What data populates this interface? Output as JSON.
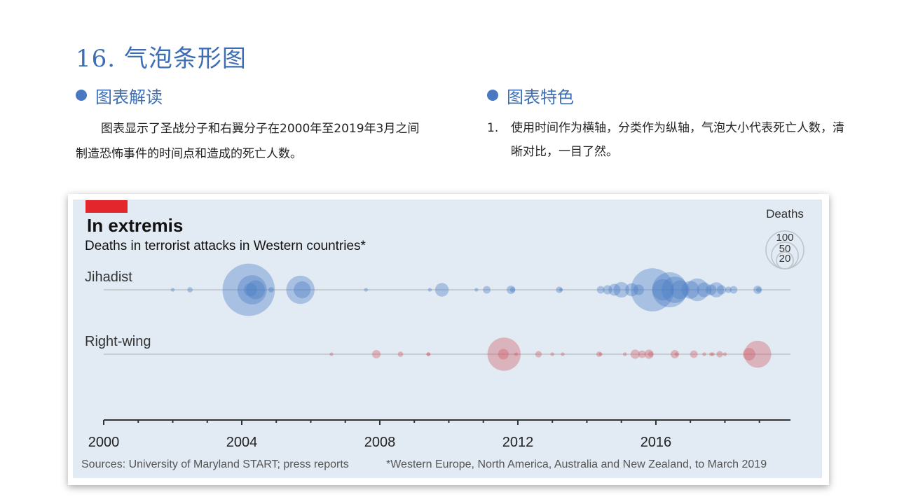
{
  "slide": {
    "title": "16. 气泡条形图",
    "left_heading": "图表解读",
    "left_text": "图表显示了圣战分子和右翼分子在2000年至2019年3月之间制造恐怖事件的时间点和造成的死亡人数。",
    "right_heading": "图表特色",
    "right_item_num": "1.",
    "right_item_text": "使用时间作为横轴，分类作为纵轴，气泡大小代表死亡人数，清晰对比，一目了然。"
  },
  "colors": {
    "title_blue": "#3d6eb5",
    "jihadist_bubble": "#4a7cc4",
    "rightwing_bubble": "#d05a63",
    "tag_red": "#e3262b"
  },
  "chart_data": {
    "type": "scatter",
    "title": "In extremis",
    "subtitle": "Deaths in terrorist attacks in Western countries*",
    "source": "Sources: University of Maryland START; press reports",
    "footnote": "*Western Europe, North America, Australia and New Zealand, to March 2019",
    "xlim": [
      2000,
      2019.9
    ],
    "x_ticks": [
      2000,
      2004,
      2008,
      2012,
      2016
    ],
    "x_tick_labels": [
      "2000",
      "2004",
      "2008",
      "2012",
      "2016"
    ],
    "legend": {
      "title": "Deaths",
      "sizes": [
        100,
        50,
        20
      ],
      "labels": [
        "100",
        "50",
        "20"
      ],
      "placement": "top-right"
    },
    "series": [
      {
        "name": "Jihadist",
        "label": "Jihadist",
        "color": "#4a7cc4",
        "points": [
          {
            "x": 2002.0,
            "deaths": 1
          },
          {
            "x": 2002.5,
            "deaths": 2
          },
          {
            "x": 2004.2,
            "deaths": 191
          },
          {
            "x": 2004.3,
            "deaths": 60
          },
          {
            "x": 2004.4,
            "deaths": 25
          },
          {
            "x": 2004.25,
            "deaths": 12
          },
          {
            "x": 2004.85,
            "deaths": 2
          },
          {
            "x": 2005.7,
            "deaths": 56
          },
          {
            "x": 2005.75,
            "deaths": 20
          },
          {
            "x": 2007.6,
            "deaths": 1
          },
          {
            "x": 2009.45,
            "deaths": 1
          },
          {
            "x": 2009.8,
            "deaths": 13
          },
          {
            "x": 2010.8,
            "deaths": 1
          },
          {
            "x": 2011.1,
            "deaths": 4
          },
          {
            "x": 2011.8,
            "deaths": 5
          },
          {
            "x": 2011.85,
            "deaths": 2
          },
          {
            "x": 2013.2,
            "deaths": 3
          },
          {
            "x": 2013.25,
            "deaths": 1
          },
          {
            "x": 2014.4,
            "deaths": 4
          },
          {
            "x": 2014.6,
            "deaths": 6
          },
          {
            "x": 2014.8,
            "deaths": 10
          },
          {
            "x": 2015.0,
            "deaths": 17
          },
          {
            "x": 2015.3,
            "deaths": 12
          },
          {
            "x": 2015.5,
            "deaths": 8
          },
          {
            "x": 2015.9,
            "deaths": 130
          },
          {
            "x": 2016.2,
            "deaths": 32
          },
          {
            "x": 2016.4,
            "deaths": 86
          },
          {
            "x": 2016.55,
            "deaths": 49
          },
          {
            "x": 2016.7,
            "deaths": 25
          },
          {
            "x": 2017.0,
            "deaths": 22
          },
          {
            "x": 2017.2,
            "deaths": 36
          },
          {
            "x": 2017.4,
            "deaths": 15
          },
          {
            "x": 2017.6,
            "deaths": 8
          },
          {
            "x": 2017.75,
            "deaths": 16
          },
          {
            "x": 2017.9,
            "deaths": 6
          },
          {
            "x": 2018.1,
            "deaths": 3
          },
          {
            "x": 2018.25,
            "deaths": 4
          },
          {
            "x": 2018.95,
            "deaths": 5
          },
          {
            "x": 2018.98,
            "deaths": 2
          }
        ]
      },
      {
        "name": "Right-wing",
        "label": "Right-wing",
        "color": "#d05a63",
        "points": [
          {
            "x": 2006.6,
            "deaths": 1
          },
          {
            "x": 2007.9,
            "deaths": 5
          },
          {
            "x": 2008.6,
            "deaths": 2
          },
          {
            "x": 2009.4,
            "deaths": 1
          },
          {
            "x": 2009.42,
            "deaths": 1
          },
          {
            "x": 2011.6,
            "deaths": 77
          },
          {
            "x": 2011.58,
            "deaths": 8
          },
          {
            "x": 2011.95,
            "deaths": 1
          },
          {
            "x": 2012.6,
            "deaths": 3
          },
          {
            "x": 2013.0,
            "deaths": 1
          },
          {
            "x": 2013.3,
            "deaths": 1
          },
          {
            "x": 2014.35,
            "deaths": 2
          },
          {
            "x": 2014.4,
            "deaths": 1
          },
          {
            "x": 2015.1,
            "deaths": 1
          },
          {
            "x": 2015.4,
            "deaths": 6
          },
          {
            "x": 2015.6,
            "deaths": 4
          },
          {
            "x": 2015.8,
            "deaths": 6
          },
          {
            "x": 2015.85,
            "deaths": 2
          },
          {
            "x": 2016.55,
            "deaths": 5
          },
          {
            "x": 2016.6,
            "deaths": 1
          },
          {
            "x": 2017.1,
            "deaths": 4
          },
          {
            "x": 2017.4,
            "deaths": 1
          },
          {
            "x": 2017.6,
            "deaths": 1
          },
          {
            "x": 2017.65,
            "deaths": 1
          },
          {
            "x": 2017.85,
            "deaths": 3
          },
          {
            "x": 2018.0,
            "deaths": 1
          },
          {
            "x": 2018.95,
            "deaths": 51
          },
          {
            "x": 2018.7,
            "deaths": 11
          }
        ]
      }
    ]
  }
}
